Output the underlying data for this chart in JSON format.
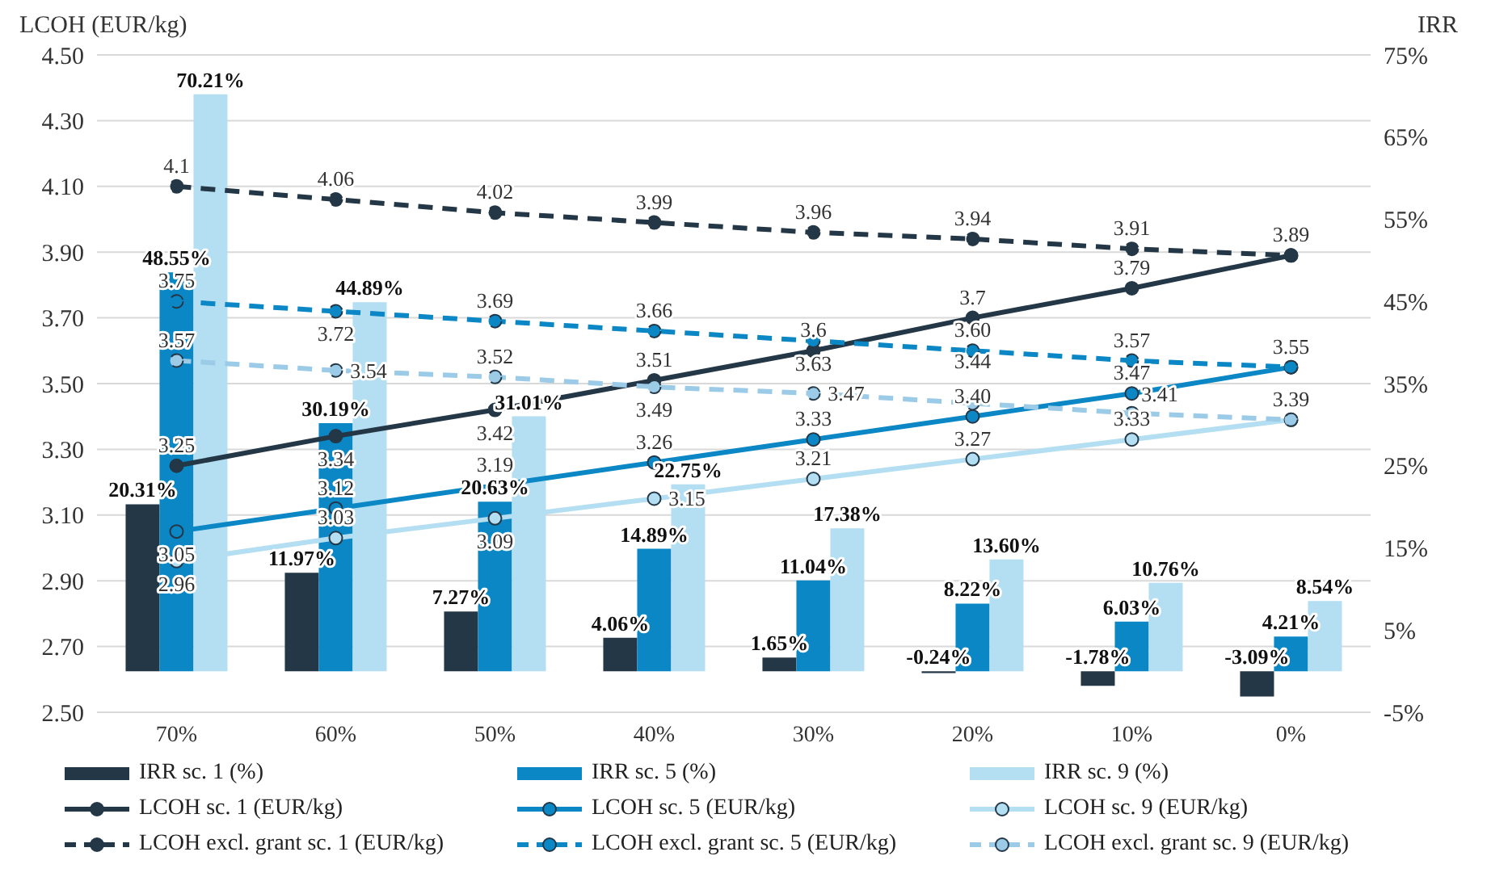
{
  "chart_data": {
    "type": "bar",
    "ylabel": "LCOH (EUR/kg)",
    "y2label": "IRR",
    "categories": [
      "70%",
      "60%",
      "50%",
      "40%",
      "30%",
      "20%",
      "10%",
      "0%"
    ],
    "ylim": [
      2.5,
      4.5
    ],
    "yticks": [
      {
        "value": 2.5,
        "label": "2.50"
      },
      {
        "value": 2.7,
        "label": "2.70"
      },
      {
        "value": 2.9,
        "label": "2.90"
      },
      {
        "value": 3.1,
        "label": "3.10"
      },
      {
        "value": 3.3,
        "label": "3.30"
      },
      {
        "value": 3.5,
        "label": "3.50"
      },
      {
        "value": 3.7,
        "label": "3.70"
      },
      {
        "value": 3.9,
        "label": "3.90"
      },
      {
        "value": 4.1,
        "label": "4.10"
      },
      {
        "value": 4.3,
        "label": "4.30"
      },
      {
        "value": 4.5,
        "label": "4.50"
      }
    ],
    "y2lim": [
      -5,
      75
    ],
    "y2ticks": [
      {
        "value": -5,
        "label": "-5%"
      },
      {
        "value": 5,
        "label": "5%"
      },
      {
        "value": 15,
        "label": "15%"
      },
      {
        "value": 25,
        "label": "25%"
      },
      {
        "value": 35,
        "label": "35%"
      },
      {
        "value": 45,
        "label": "45%"
      },
      {
        "value": 55,
        "label": "55%"
      },
      {
        "value": 65,
        "label": "65%"
      },
      {
        "value": 75,
        "label": "75%"
      }
    ],
    "grid": "y",
    "legend": "bottom",
    "series": [
      {
        "name": "IRR sc. 1 (%)",
        "axis": "y2",
        "color": "#243746",
        "values": [
          20.31,
          11.97,
          7.27,
          4.06,
          1.65,
          -0.24,
          -1.78,
          -3.09
        ],
        "value_labels": [
          "20.31%",
          "11.97%",
          "7.27%",
          "4.06%",
          "1.65%",
          "-0.24%",
          "-1.78%",
          "-3.09%"
        ]
      },
      {
        "name": "IRR sc. 5 (%)",
        "axis": "y2",
        "color": "#0a87c4",
        "values": [
          48.55,
          30.19,
          20.63,
          14.89,
          11.04,
          8.22,
          6.03,
          4.21
        ],
        "value_labels": [
          "48.55%",
          "30.19%",
          "20.63%",
          "14.89%",
          "11.04%",
          "8.22%",
          "6.03%",
          "4.21%"
        ]
      },
      {
        "name": "IRR sc. 9 (%)",
        "axis": "y2",
        "color": "#b4def2",
        "values": [
          70.21,
          44.89,
          31.01,
          22.75,
          17.38,
          13.6,
          10.76,
          8.54
        ],
        "value_labels": [
          "70.21%",
          "44.89%",
          "31.01%",
          "22.75%",
          "17.38%",
          "13.60%",
          "10.76%",
          "8.54%"
        ]
      },
      {
        "name": "LCOH sc. 1 (EUR/kg)",
        "type": "line",
        "marker": "circle",
        "line_style": "solid",
        "color": "#243746",
        "values": [
          3.25,
          3.34,
          3.42,
          3.51,
          3.6,
          3.7,
          3.79,
          3.89
        ],
        "value_labels": [
          "3.25",
          "3.34",
          "3.42",
          "3.51",
          "3.6",
          "3.7",
          "3.79",
          null
        ]
      },
      {
        "name": "LCOH sc. 5 (EUR/kg)",
        "type": "line",
        "marker": "circle",
        "line_style": "solid",
        "color": "#0a87c4",
        "values": [
          3.05,
          3.12,
          3.19,
          3.26,
          3.33,
          3.4,
          3.47,
          3.55
        ],
        "value_labels": [
          "3.05",
          "3.12",
          "3.19",
          "3.26",
          "3.33",
          "3.40",
          "3.47",
          null
        ]
      },
      {
        "name": "LCOH sc. 9 (EUR/kg)",
        "type": "line",
        "marker": "circle",
        "line_style": "solid",
        "color": "#b4def2",
        "values": [
          2.96,
          3.03,
          3.09,
          3.15,
          3.21,
          3.27,
          3.33,
          3.39
        ],
        "value_labels": [
          "2.96",
          "3.03",
          "3.09",
          "3.15",
          "3.21",
          "3.27",
          "3.33",
          null
        ]
      },
      {
        "name": "LCOH excl. grant sc. 1 (EUR/kg)",
        "type": "line",
        "marker": "circle",
        "line_style": "dashed",
        "color": "#243746",
        "values": [
          4.1,
          4.06,
          4.02,
          3.99,
          3.96,
          3.94,
          3.91,
          3.89
        ],
        "value_labels": [
          "4.1",
          "4.06",
          "4.02",
          "3.99",
          "3.96",
          "3.94",
          "3.91",
          "3.89"
        ]
      },
      {
        "name": "LCOH excl. grant sc. 5 (EUR/kg)",
        "type": "line",
        "marker": "circle",
        "line_style": "dashed",
        "color": "#0a87c4",
        "values": [
          3.75,
          3.72,
          3.69,
          3.66,
          3.63,
          3.6,
          3.57,
          3.55
        ],
        "value_labels": [
          "3.75",
          "3.72",
          "3.69",
          "3.66",
          "3.63",
          "3.60",
          "3.57",
          "3.55"
        ]
      },
      {
        "name": "LCOH excl. grant sc. 9 (EUR/kg)",
        "type": "line",
        "marker": "circle",
        "line_style": "dashed",
        "color": "#9ccbe8",
        "values": [
          3.57,
          3.54,
          3.52,
          3.49,
          3.47,
          3.44,
          3.41,
          3.39
        ],
        "value_labels": [
          "3.57",
          "3.54",
          "3.52",
          "3.49",
          "3.47",
          "3.44",
          "3.41",
          "3.39"
        ]
      }
    ]
  }
}
